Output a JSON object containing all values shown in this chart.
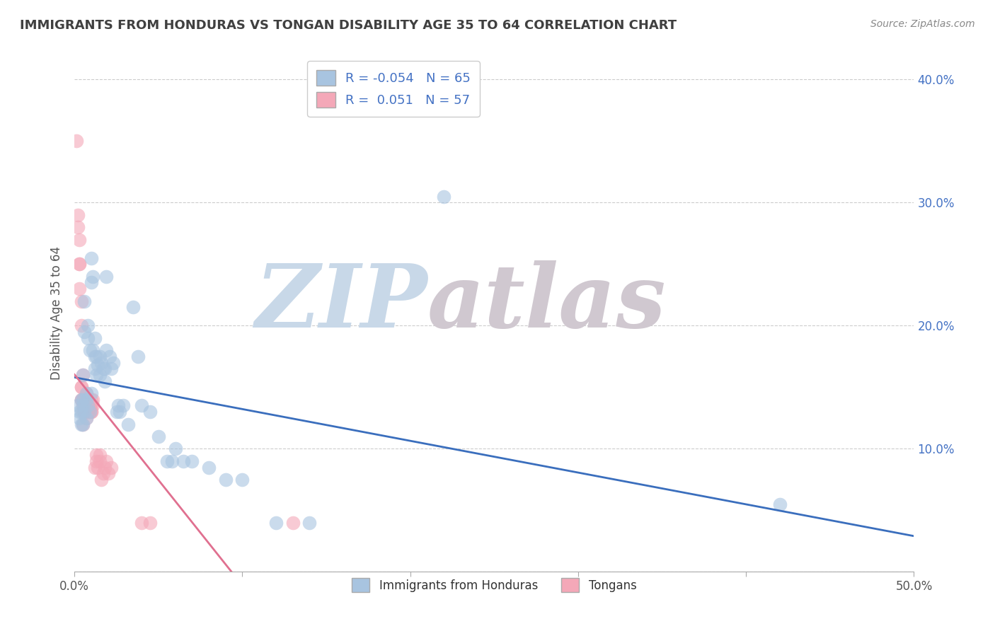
{
  "title": "IMMIGRANTS FROM HONDURAS VS TONGAN DISABILITY AGE 35 TO 64 CORRELATION CHART",
  "source_text": "Source: ZipAtlas.com",
  "ylabel": "Disability Age 35 to 64",
  "xlim": [
    0.0,
    0.5
  ],
  "ylim": [
    0.0,
    0.42
  ],
  "xticks": [
    0.0,
    0.1,
    0.2,
    0.3,
    0.4,
    0.5
  ],
  "xticklabels": [
    "0.0%",
    "",
    "",
    "",
    "",
    "50.0%"
  ],
  "yticks": [
    0.0,
    0.1,
    0.2,
    0.3,
    0.4
  ],
  "yticklabels_right": [
    "",
    "10.0%",
    "20.0%",
    "30.0%",
    "40.0%"
  ],
  "blue_R": "-0.054",
  "blue_N": "65",
  "pink_R": "0.051",
  "pink_N": "57",
  "blue_color": "#a8c4e0",
  "pink_color": "#f4a8b8",
  "blue_line_color": "#3a6ebd",
  "pink_line_color": "#e07090",
  "pink_line_dashed_color": "#e07090",
  "grid_color": "#cccccc",
  "title_color": "#404040",
  "legend_label_color": "#4472c4",
  "blue_scatter": [
    [
      0.002,
      0.135
    ],
    [
      0.003,
      0.125
    ],
    [
      0.003,
      0.13
    ],
    [
      0.004,
      0.14
    ],
    [
      0.004,
      0.12
    ],
    [
      0.004,
      0.13
    ],
    [
      0.005,
      0.135
    ],
    [
      0.005,
      0.14
    ],
    [
      0.005,
      0.16
    ],
    [
      0.005,
      0.12
    ],
    [
      0.006,
      0.13
    ],
    [
      0.006,
      0.195
    ],
    [
      0.006,
      0.22
    ],
    [
      0.007,
      0.125
    ],
    [
      0.007,
      0.14
    ],
    [
      0.007,
      0.145
    ],
    [
      0.008,
      0.19
    ],
    [
      0.008,
      0.2
    ],
    [
      0.008,
      0.135
    ],
    [
      0.009,
      0.18
    ],
    [
      0.009,
      0.13
    ],
    [
      0.01,
      0.255
    ],
    [
      0.01,
      0.145
    ],
    [
      0.01,
      0.235
    ],
    [
      0.011,
      0.24
    ],
    [
      0.011,
      0.18
    ],
    [
      0.012,
      0.19
    ],
    [
      0.012,
      0.175
    ],
    [
      0.012,
      0.165
    ],
    [
      0.013,
      0.175
    ],
    [
      0.013,
      0.16
    ],
    [
      0.014,
      0.168
    ],
    [
      0.015,
      0.175
    ],
    [
      0.015,
      0.16
    ],
    [
      0.016,
      0.17
    ],
    [
      0.017,
      0.165
    ],
    [
      0.018,
      0.155
    ],
    [
      0.018,
      0.165
    ],
    [
      0.019,
      0.24
    ],
    [
      0.019,
      0.18
    ],
    [
      0.021,
      0.175
    ],
    [
      0.022,
      0.165
    ],
    [
      0.023,
      0.17
    ],
    [
      0.025,
      0.13
    ],
    [
      0.026,
      0.135
    ],
    [
      0.027,
      0.13
    ],
    [
      0.029,
      0.135
    ],
    [
      0.032,
      0.12
    ],
    [
      0.035,
      0.215
    ],
    [
      0.038,
      0.175
    ],
    [
      0.04,
      0.135
    ],
    [
      0.045,
      0.13
    ],
    [
      0.05,
      0.11
    ],
    [
      0.055,
      0.09
    ],
    [
      0.058,
      0.09
    ],
    [
      0.06,
      0.1
    ],
    [
      0.065,
      0.09
    ],
    [
      0.07,
      0.09
    ],
    [
      0.08,
      0.085
    ],
    [
      0.09,
      0.075
    ],
    [
      0.1,
      0.075
    ],
    [
      0.12,
      0.04
    ],
    [
      0.14,
      0.04
    ],
    [
      0.42,
      0.055
    ],
    [
      0.22,
      0.305
    ]
  ],
  "pink_scatter": [
    [
      0.001,
      0.35
    ],
    [
      0.002,
      0.29
    ],
    [
      0.002,
      0.28
    ],
    [
      0.003,
      0.25
    ],
    [
      0.003,
      0.27
    ],
    [
      0.003,
      0.23
    ],
    [
      0.003,
      0.25
    ],
    [
      0.004,
      0.2
    ],
    [
      0.004,
      0.22
    ],
    [
      0.004,
      0.15
    ],
    [
      0.004,
      0.14
    ],
    [
      0.004,
      0.14
    ],
    [
      0.004,
      0.15
    ],
    [
      0.005,
      0.16
    ],
    [
      0.005,
      0.14
    ],
    [
      0.005,
      0.13
    ],
    [
      0.005,
      0.12
    ],
    [
      0.005,
      0.135
    ],
    [
      0.006,
      0.14
    ],
    [
      0.006,
      0.13
    ],
    [
      0.006,
      0.135
    ],
    [
      0.006,
      0.13
    ],
    [
      0.006,
      0.135
    ],
    [
      0.007,
      0.14
    ],
    [
      0.007,
      0.145
    ],
    [
      0.007,
      0.13
    ],
    [
      0.007,
      0.125
    ],
    [
      0.007,
      0.14
    ],
    [
      0.008,
      0.13
    ],
    [
      0.008,
      0.135
    ],
    [
      0.008,
      0.13
    ],
    [
      0.008,
      0.14
    ],
    [
      0.009,
      0.135
    ],
    [
      0.009,
      0.13
    ],
    [
      0.009,
      0.135
    ],
    [
      0.009,
      0.135
    ],
    [
      0.01,
      0.13
    ],
    [
      0.01,
      0.14
    ],
    [
      0.01,
      0.135
    ],
    [
      0.01,
      0.13
    ],
    [
      0.011,
      0.14
    ],
    [
      0.011,
      0.135
    ],
    [
      0.012,
      0.085
    ],
    [
      0.013,
      0.095
    ],
    [
      0.013,
      0.09
    ],
    [
      0.014,
      0.085
    ],
    [
      0.015,
      0.09
    ],
    [
      0.015,
      0.095
    ],
    [
      0.016,
      0.075
    ],
    [
      0.017,
      0.08
    ],
    [
      0.018,
      0.085
    ],
    [
      0.019,
      0.09
    ],
    [
      0.02,
      0.08
    ],
    [
      0.022,
      0.085
    ],
    [
      0.04,
      0.04
    ],
    [
      0.045,
      0.04
    ],
    [
      0.13,
      0.04
    ]
  ],
  "watermark_zip": "ZIP",
  "watermark_atlas": "atlas",
  "watermark_color_zip": "#c8d8e8",
  "watermark_color_atlas": "#d0c8d0",
  "legend_entries": [
    {
      "label": "Immigrants from Honduras",
      "color": "#a8c4e0"
    },
    {
      "label": "Tongans",
      "color": "#f4a8b8"
    }
  ]
}
